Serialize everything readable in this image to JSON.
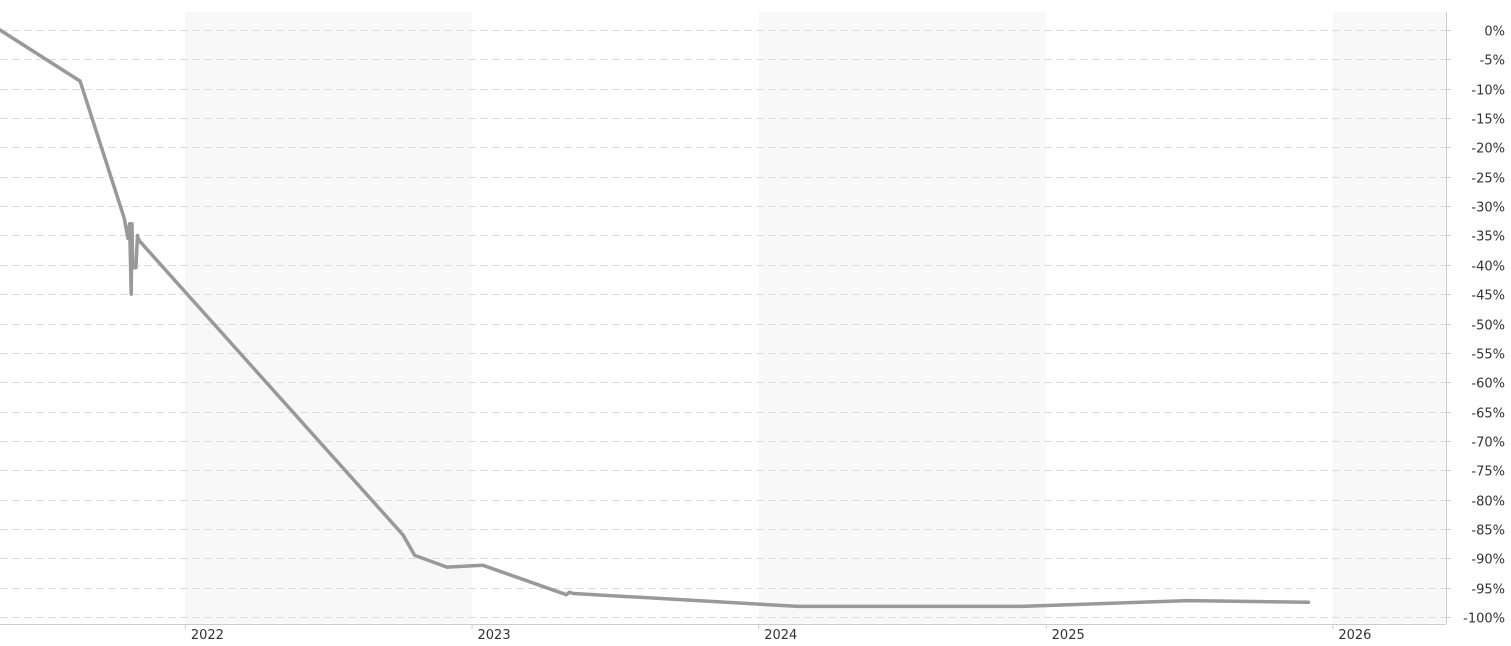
{
  "chart_data": {
    "type": "line",
    "title": "",
    "xlabel": "",
    "ylabel": "",
    "y_unit": "%",
    "ylim": [
      -100,
      0
    ],
    "y_ticks": [
      0,
      -5,
      -10,
      -15,
      -20,
      -25,
      -30,
      -35,
      -40,
      -45,
      -50,
      -55,
      -60,
      -65,
      -70,
      -75,
      -80,
      -85,
      -90,
      -95,
      -100
    ],
    "y_tick_labels": [
      "0%",
      "-5%",
      "-10%",
      "-15%",
      "-20%",
      "-25%",
      "-30%",
      "-35%",
      "-40%",
      "-45%",
      "-50%",
      "-55%",
      "-60%",
      "-65%",
      "-70%",
      "-75%",
      "-80%",
      "-85%",
      "-90%",
      "-95%",
      "-100%"
    ],
    "y_axis_position": "right",
    "xlim": [
      "2021-05-10",
      "2026-05-25"
    ],
    "x_ticks": [
      "2022-01-01",
      "2023-01-01",
      "2024-01-01",
      "2025-01-01",
      "2026-01-01"
    ],
    "x_tick_labels": [
      "2022",
      "2023",
      "2024",
      "2025",
      "2026"
    ],
    "alternating_year_shading": true,
    "grid": "horizontal dashed",
    "line_color": "#999999",
    "series": [
      {
        "x": [
          "2021-05-10",
          "2021-08-20",
          "2021-10-15",
          "2021-10-20",
          "2021-10-22",
          "2021-10-24",
          "2021-10-25",
          "2021-10-26",
          "2021-10-30",
          "2021-11-01",
          "2021-11-02",
          "2021-11-04",
          "2022-10-05",
          "2022-10-20",
          "2022-11-30",
          "2023-01-15",
          "2023-05-01",
          "2023-05-05",
          "2023-05-10",
          "2024-02-20",
          "2024-12-01",
          "2025-07-01",
          "2025-12-01"
        ],
        "y": [
          0,
          -8.7,
          -32,
          -35.5,
          -33,
          -45,
          -33,
          -40.5,
          -40.5,
          -35,
          -35.5,
          -36,
          -86,
          -89.5,
          -91.5,
          -91.2,
          -96.2,
          -95.8,
          -96,
          -98.2,
          -98.2,
          -97.2,
          -97.5
        ]
      }
    ]
  }
}
